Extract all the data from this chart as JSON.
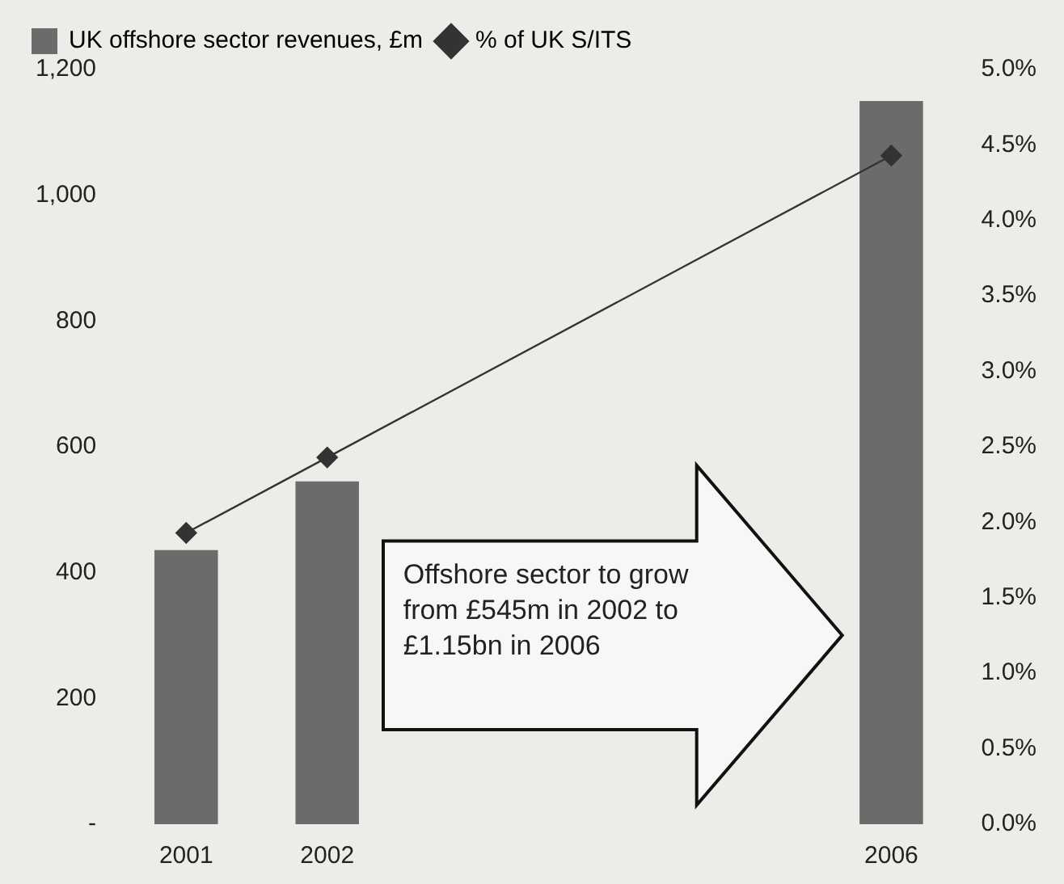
{
  "chart_data": {
    "type": "bar",
    "categories": [
      "2001",
      "2002",
      null,
      null,
      null,
      "2006"
    ],
    "series": [
      {
        "name": "UK offshore sector revenues, £m",
        "color": "#6b6b6b",
        "values": [
          436,
          545,
          null,
          null,
          null,
          1150
        ]
      },
      {
        "name": "% of UK S/ITS",
        "type": "line",
        "axis": "y2",
        "color": "#333333",
        "values": [
          1.93,
          2.43,
          null,
          null,
          null,
          4.43
        ]
      }
    ],
    "ylim": [
      0,
      1200
    ],
    "yticks": [
      {
        "value": 0,
        "label": "-"
      },
      200,
      400,
      600,
      800,
      {
        "value": 1000,
        "label": "1,000"
      },
      {
        "value": 1200,
        "label": "1,200"
      }
    ],
    "y2lim": [
      0,
      5
    ],
    "y2ticks": [
      {
        "value": 0,
        "label": "0.0%"
      },
      {
        "value": 0.5,
        "label": "0.5%"
      },
      {
        "value": 1,
        "label": "1.0%"
      },
      {
        "value": 1.5,
        "label": "1.5%"
      },
      {
        "value": 2,
        "label": "2.0%"
      },
      {
        "value": 2.5,
        "label": "2.5%"
      },
      {
        "value": 3,
        "label": "3.0%"
      },
      {
        "value": 3.5,
        "label": "3.5%"
      },
      {
        "value": 4,
        "label": "4.0%"
      },
      {
        "value": 4.5,
        "label": "4.5%"
      },
      {
        "value": 5,
        "label": "5.0%"
      }
    ],
    "annotations": [
      "Offshore sector to grow from £545m in 2002 to £1.15bn in 2006"
    ],
    "legend": "top left",
    "marker": "diamond",
    "grid": false
  }
}
